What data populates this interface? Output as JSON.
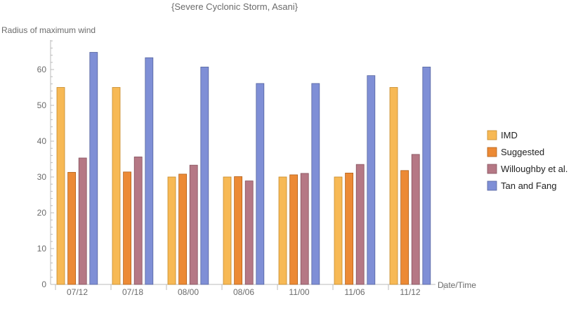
{
  "chart_data": {
    "type": "bar",
    "title": "{Severe Cyclonic Storm, Asani}",
    "xlabel": "Date/Time",
    "ylabel": "Radius of maximum wind",
    "categories": [
      "07/12",
      "07/18",
      "08/00",
      "08/06",
      "11/00",
      "11/06",
      "11/12"
    ],
    "ylim": [
      0,
      68
    ],
    "yticks": [
      0,
      10,
      20,
      30,
      40,
      50,
      60
    ],
    "legend_position": "right",
    "series": [
      {
        "name": "IMD",
        "color": "#f7b955",
        "stroke": "#c58a2a",
        "values": [
          55,
          55,
          30,
          30,
          30,
          30,
          55
        ]
      },
      {
        "name": "Suggested",
        "color": "#ec8a35",
        "stroke": "#b2601a",
        "values": [
          31.3,
          31.4,
          30.8,
          30.1,
          30.6,
          31.1,
          31.8
        ]
      },
      {
        "name": "Willoughby et al.",
        "color": "#b57885",
        "stroke": "#84505c",
        "values": [
          35.3,
          35.6,
          33.3,
          28.9,
          31.0,
          33.5,
          36.3
        ]
      },
      {
        "name": "Tan and Fang",
        "color": "#7f8fd6",
        "stroke": "#56649f",
        "values": [
          64.8,
          63.3,
          60.7,
          56.1,
          56.1,
          58.3,
          60.7
        ]
      }
    ]
  }
}
